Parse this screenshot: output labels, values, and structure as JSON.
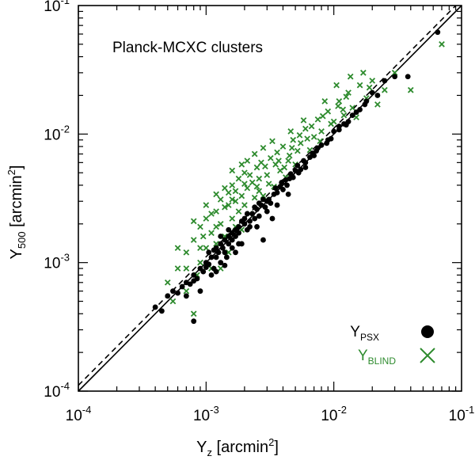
{
  "chart_data": {
    "type": "scatter",
    "title": "Planck-MCXC clusters",
    "xlabel": {
      "base": "Y",
      "sub": "z",
      "unit_pre": " [arcmin",
      "unit_sup": "2",
      "unit_post": "]"
    },
    "ylabel": {
      "base": "Y",
      "sub": "500",
      "unit_pre": " [arcmin",
      "unit_sup": "2",
      "unit_post": "]"
    },
    "xscale": "log",
    "yscale": "log",
    "xlim": [
      0.0001,
      0.1
    ],
    "ylim": [
      0.0001,
      0.1
    ],
    "ticks": [
      {
        "value": 0.0001,
        "base": "10",
        "exp": "-4"
      },
      {
        "value": 0.001,
        "base": "10",
        "exp": "-3"
      },
      {
        "value": 0.01,
        "base": "10",
        "exp": "-2"
      },
      {
        "value": 0.1,
        "base": "10",
        "exp": "-1"
      }
    ],
    "reference_lines": [
      {
        "name": "one-to-one",
        "style": "solid",
        "slope_log": 1.0,
        "offset_log": 0.0
      },
      {
        "name": "offset",
        "style": "dashed",
        "slope_log": 1.0,
        "offset_log": 0.045
      }
    ],
    "legend": {
      "placement": "bottom-right",
      "entries": [
        {
          "base": "Y",
          "sub": "PSX",
          "marker": "dot",
          "color": "#000000"
        },
        {
          "base": "Y",
          "sub": "BLIND",
          "marker": "cross",
          "color": "#2e8b2e"
        }
      ]
    },
    "series": [
      {
        "name": "Y_PSX",
        "marker": "dot",
        "color": "#000000",
        "points": [
          [
            0.0004,
            0.00045
          ],
          [
            0.00045,
            0.00042
          ],
          [
            0.0005,
            0.00055
          ],
          [
            0.00055,
            0.0006
          ],
          [
            0.0006,
            0.00058
          ],
          [
            0.00065,
            0.00065
          ],
          [
            0.0007,
            0.0007
          ],
          [
            0.00075,
            0.00068
          ],
          [
            0.0008,
            0.00035
          ],
          [
            0.0008,
            0.0008
          ],
          [
            0.00085,
            0.00075
          ],
          [
            0.0009,
            0.0009
          ],
          [
            0.00095,
            0.00085
          ],
          [
            0.001,
            0.001
          ],
          [
            0.001,
            0.00092
          ],
          [
            0.00105,
            0.00097
          ],
          [
            0.0011,
            0.0011
          ],
          [
            0.00115,
            0.0009
          ],
          [
            0.0012,
            0.0011
          ],
          [
            0.0012,
            0.0013
          ],
          [
            0.00125,
            0.0012
          ],
          [
            0.0013,
            0.001
          ],
          [
            0.0013,
            0.0014
          ],
          [
            0.00135,
            0.0013
          ],
          [
            0.0014,
            0.0012
          ],
          [
            0.0014,
            0.0015
          ],
          [
            0.00145,
            0.0011
          ],
          [
            0.0015,
            0.0016
          ],
          [
            0.0015,
            0.0014
          ],
          [
            0.0016,
            0.0015
          ],
          [
            0.0016,
            0.0013
          ],
          [
            0.0017,
            0.0018
          ],
          [
            0.0017,
            0.0016
          ],
          [
            0.0018,
            0.0017
          ],
          [
            0.0018,
            0.0019
          ],
          [
            0.0019,
            0.0014
          ],
          [
            0.002,
            0.002
          ],
          [
            0.002,
            0.0022
          ],
          [
            0.0021,
            0.0018
          ],
          [
            0.0022,
            0.0021
          ],
          [
            0.0023,
            0.0024
          ],
          [
            0.0024,
            0.0022
          ],
          [
            0.0025,
            0.0026
          ],
          [
            0.0026,
            0.0023
          ],
          [
            0.0027,
            0.0028
          ],
          [
            0.0028,
            0.0015
          ],
          [
            0.0029,
            0.0027
          ],
          [
            0.003,
            0.003
          ],
          [
            0.0031,
            0.0031
          ],
          [
            0.0032,
            0.0029
          ],
          [
            0.0034,
            0.0034
          ],
          [
            0.0036,
            0.0035
          ],
          [
            0.0038,
            0.0039
          ],
          [
            0.004,
            0.0037
          ],
          [
            0.0042,
            0.0044
          ],
          [
            0.0045,
            0.0045
          ],
          [
            0.0048,
            0.0046
          ],
          [
            0.005,
            0.0052
          ],
          [
            0.0055,
            0.0053
          ],
          [
            0.006,
            0.006
          ],
          [
            0.0065,
            0.0066
          ],
          [
            0.007,
            0.0068
          ],
          [
            0.0075,
            0.0078
          ],
          [
            0.008,
            0.0082
          ],
          [
            0.009,
            0.009
          ],
          [
            0.01,
            0.0105
          ],
          [
            0.011,
            0.0108
          ],
          [
            0.012,
            0.012
          ],
          [
            0.013,
            0.0125
          ],
          [
            0.014,
            0.014
          ],
          [
            0.016,
            0.0155
          ],
          [
            0.018,
            0.018
          ],
          [
            0.02,
            0.021
          ],
          [
            0.022,
            0.02
          ],
          [
            0.025,
            0.026
          ],
          [
            0.03,
            0.028
          ],
          [
            0.038,
            0.028
          ],
          [
            0.065,
            0.062
          ],
          [
            0.0012,
            0.00085
          ],
          [
            0.0009,
            0.0006
          ],
          [
            0.0011,
            0.0008
          ],
          [
            0.0007,
            0.00055
          ],
          [
            0.0033,
            0.0022
          ],
          [
            0.0044,
            0.0034
          ],
          [
            0.0025,
            0.0019
          ],
          [
            0.0019,
            0.0021
          ],
          [
            0.0015,
            0.0018
          ],
          [
            0.0013,
            0.0016
          ],
          [
            0.0021,
            0.0024
          ],
          [
            0.006,
            0.0055
          ],
          [
            0.0035,
            0.0038
          ],
          [
            0.0028,
            0.0031
          ],
          [
            0.0017,
            0.0012
          ],
          [
            0.0024,
            0.0027
          ],
          [
            0.0046,
            0.0049
          ],
          [
            0.0053,
            0.005
          ],
          [
            0.0068,
            0.0071
          ],
          [
            0.0095,
            0.0092
          ],
          [
            0.0125,
            0.0118
          ],
          [
            0.0008,
            0.00072
          ],
          [
            0.00115,
            0.00125
          ],
          [
            0.00105,
            0.0012
          ],
          [
            0.0014,
            0.00095
          ],
          [
            0.0016,
            0.0017
          ],
          [
            0.0018,
            0.0014
          ],
          [
            0.0022,
            0.0019
          ],
          [
            0.0026,
            0.0029
          ],
          [
            0.003,
            0.0025
          ],
          [
            0.0036,
            0.0028
          ],
          [
            0.0039,
            0.0042
          ],
          [
            0.0043,
            0.004
          ],
          [
            0.0052,
            0.0057
          ],
          [
            0.0058,
            0.0062
          ],
          [
            0.0073,
            0.0074
          ],
          [
            0.0088,
            0.0085
          ],
          [
            0.011,
            0.0115
          ],
          [
            0.015,
            0.0148
          ],
          [
            0.0175,
            0.017
          ]
        ]
      },
      {
        "name": "Y_BLIND",
        "marker": "cross",
        "color": "#2e8b2e",
        "points": [
          [
            0.0005,
            0.0007
          ],
          [
            0.00055,
            0.0005
          ],
          [
            0.0006,
            0.0009
          ],
          [
            0.0007,
            0.0006
          ],
          [
            0.0007,
            0.0012
          ],
          [
            0.0008,
            0.0004
          ],
          [
            0.0008,
            0.0015
          ],
          [
            0.0009,
            0.001
          ],
          [
            0.0009,
            0.0019
          ],
          [
            0.001,
            0.0013
          ],
          [
            0.001,
            0.0022
          ],
          [
            0.0011,
            0.0009
          ],
          [
            0.0011,
            0.0017
          ],
          [
            0.0012,
            0.0025
          ],
          [
            0.0012,
            0.0014
          ],
          [
            0.0013,
            0.002
          ],
          [
            0.0013,
            0.0031
          ],
          [
            0.0014,
            0.0016
          ],
          [
            0.0014,
            0.0027
          ],
          [
            0.0015,
            0.0012
          ],
          [
            0.0015,
            0.0035
          ],
          [
            0.0016,
            0.0022
          ],
          [
            0.0016,
            0.004
          ],
          [
            0.0017,
            0.0019
          ],
          [
            0.0017,
            0.003
          ],
          [
            0.0018,
            0.0045
          ],
          [
            0.0018,
            0.0025
          ],
          [
            0.0019,
            0.0033
          ],
          [
            0.002,
            0.0028
          ],
          [
            0.002,
            0.005
          ],
          [
            0.0021,
            0.0038
          ],
          [
            0.0022,
            0.0024
          ],
          [
            0.0023,
            0.0042
          ],
          [
            0.0024,
            0.0032
          ],
          [
            0.0025,
            0.0055
          ],
          [
            0.0026,
            0.0036
          ],
          [
            0.0027,
            0.006
          ],
          [
            0.0028,
            0.0033
          ],
          [
            0.003,
            0.0048
          ],
          [
            0.0032,
            0.0065
          ],
          [
            0.0034,
            0.0039
          ],
          [
            0.0036,
            0.0072
          ],
          [
            0.0038,
            0.0052
          ],
          [
            0.004,
            0.008
          ],
          [
            0.0042,
            0.0046
          ],
          [
            0.0045,
            0.0068
          ],
          [
            0.0048,
            0.009
          ],
          [
            0.005,
            0.0058
          ],
          [
            0.0055,
            0.0085
          ],
          [
            0.006,
            0.011
          ],
          [
            0.0065,
            0.0075
          ],
          [
            0.007,
            0.0095
          ],
          [
            0.0075,
            0.013
          ],
          [
            0.008,
            0.0105
          ],
          [
            0.009,
            0.015
          ],
          [
            0.01,
            0.0125
          ],
          [
            0.011,
            0.018
          ],
          [
            0.012,
            0.014
          ],
          [
            0.013,
            0.021
          ],
          [
            0.014,
            0.016
          ],
          [
            0.016,
            0.024
          ],
          [
            0.018,
            0.019
          ],
          [
            0.02,
            0.026
          ],
          [
            0.022,
            0.017
          ],
          [
            0.025,
            0.022
          ],
          [
            0.03,
            0.03
          ],
          [
            0.04,
            0.022
          ],
          [
            0.07,
            0.05
          ],
          [
            0.0006,
            0.0013
          ],
          [
            0.0008,
            0.0021
          ],
          [
            0.001,
            0.0028
          ],
          [
            0.0012,
            0.0034
          ],
          [
            0.0014,
            0.0038
          ],
          [
            0.0016,
            0.0052
          ],
          [
            0.0019,
            0.0058
          ],
          [
            0.0021,
            0.0062
          ],
          [
            0.0024,
            0.007
          ],
          [
            0.0028,
            0.0078
          ],
          [
            0.0033,
            0.0088
          ],
          [
            0.0046,
            0.0105
          ],
          [
            0.0058,
            0.0128
          ],
          [
            0.0085,
            0.018
          ],
          [
            0.0105,
            0.024
          ],
          [
            0.0135,
            0.028
          ],
          [
            0.017,
            0.03
          ],
          [
            0.00085,
            0.0008
          ],
          [
            0.00095,
            0.0016
          ],
          [
            0.0011,
            0.0024
          ],
          [
            0.0013,
            0.0009
          ],
          [
            0.0015,
            0.0028
          ],
          [
            0.0017,
            0.0036
          ],
          [
            0.0019,
            0.0018
          ],
          [
            0.0022,
            0.0048
          ],
          [
            0.0026,
            0.0045
          ],
          [
            0.0029,
            0.0056
          ],
          [
            0.0035,
            0.0058
          ],
          [
            0.0044,
            0.0062
          ],
          [
            0.0052,
            0.0074
          ],
          [
            0.0062,
            0.0092
          ],
          [
            0.0078,
            0.0088
          ],
          [
            0.0095,
            0.012
          ],
          [
            0.0118,
            0.0155
          ],
          [
            0.015,
            0.0135
          ],
          [
            0.019,
            0.023
          ],
          [
            0.0007,
            0.0009
          ],
          [
            0.0009,
            0.0013
          ],
          [
            0.0012,
            0.0019
          ],
          [
            0.0016,
            0.0031
          ],
          [
            0.002,
            0.0041
          ],
          [
            0.0025,
            0.0039
          ],
          [
            0.0031,
            0.0041
          ],
          [
            0.0037,
            0.0062
          ],
          [
            0.0041,
            0.0055
          ],
          [
            0.0047,
            0.0078
          ],
          [
            0.0054,
            0.0098
          ],
          [
            0.0067,
            0.0115
          ],
          [
            0.0082,
            0.0138
          ],
          [
            0.0108,
            0.0165
          ],
          [
            0.0125,
            0.0195
          ]
        ]
      }
    ]
  }
}
